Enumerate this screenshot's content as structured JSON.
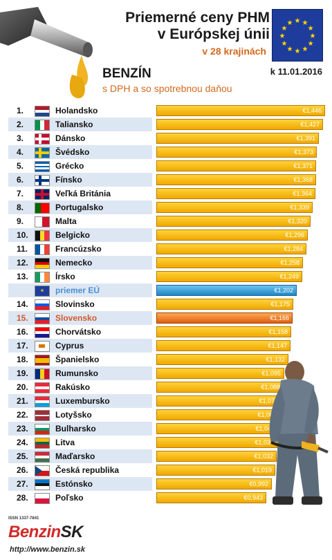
{
  "header": {
    "title_line1": "Priemerné ceny PHM",
    "title_line2": "v Európskej únii",
    "title_line3": "v 28 krajinách",
    "fuel_type": "BENZÍN",
    "subtitle": "s DPH a so spotrebnou daňou",
    "date": "k 11.01.2016"
  },
  "footer": {
    "issn": "ISSN 1337-7841",
    "logo_part1": "Benzin",
    "logo_part2": "SK",
    "url": "http://www.benzin.sk"
  },
  "colors": {
    "bar_default": "#f1a800",
    "bar_eu": "#1f86c5",
    "bar_slovakia": "#dd5e0f",
    "highlight_slovakia": "#d4572a",
    "highlight_eu": "#4a8fd4"
  },
  "chart_data": {
    "type": "bar",
    "orientation": "horizontal",
    "title": "Priemerné ceny PHM v Európskej únii",
    "xlim": [
      0,
      1.446
    ],
    "rows": [
      {
        "rank": "1.",
        "country": "Holandsko",
        "value": 1.446,
        "label": "€1,446",
        "flag": "nl"
      },
      {
        "rank": "2.",
        "country": "Taliansko",
        "value": 1.427,
        "label": "€1,427",
        "flag": "it"
      },
      {
        "rank": "3.",
        "country": "Dánsko",
        "value": 1.391,
        "label": "€1,391",
        "flag": "dk"
      },
      {
        "rank": "4.",
        "country": "Švédsko",
        "value": 1.373,
        "label": "€1,373",
        "flag": "se"
      },
      {
        "rank": "5.",
        "country": "Grécko",
        "value": 1.371,
        "label": "€1,371",
        "flag": "gr"
      },
      {
        "rank": "6.",
        "country": "Fínsko",
        "value": 1.368,
        "label": "€1,368",
        "flag": "fi"
      },
      {
        "rank": "7.",
        "country": "Veľká Británia",
        "value": 1.364,
        "label": "€1,364",
        "flag": "gb"
      },
      {
        "rank": "8.",
        "country": "Portugalsko",
        "value": 1.339,
        "label": "€1,339",
        "flag": "pt"
      },
      {
        "rank": "9.",
        "country": "Malta",
        "value": 1.32,
        "label": "€1,320",
        "flag": "mt"
      },
      {
        "rank": "10.",
        "country": "Belgicko",
        "value": 1.296,
        "label": "€1,296",
        "flag": "be"
      },
      {
        "rank": "11.",
        "country": "Francúzsko",
        "value": 1.284,
        "label": "€1,284",
        "flag": "fr"
      },
      {
        "rank": "12.",
        "country": "Nemecko",
        "value": 1.258,
        "label": "€1,258",
        "flag": "de"
      },
      {
        "rank": "13.",
        "country": "Írsko",
        "value": 1.249,
        "label": "€1,249",
        "flag": "ie"
      },
      {
        "rank": "",
        "country": "priemer EÚ",
        "value": 1.202,
        "label": "€1,202",
        "flag": "eu",
        "kind": "eu"
      },
      {
        "rank": "14.",
        "country": "Slovinsko",
        "value": 1.175,
        "label": "€1,175",
        "flag": "si"
      },
      {
        "rank": "15.",
        "country": "Slovensko",
        "value": 1.166,
        "label": "€1,166",
        "flag": "sk",
        "kind": "sk"
      },
      {
        "rank": "16.",
        "country": "Chorvátsko",
        "value": 1.158,
        "label": "€1,158",
        "flag": "hr"
      },
      {
        "rank": "17.",
        "country": "Cyprus",
        "value": 1.147,
        "label": "€1,147",
        "flag": "cy"
      },
      {
        "rank": "18.",
        "country": "Španielsko",
        "value": 1.132,
        "label": "€1,132",
        "flag": "es"
      },
      {
        "rank": "19.",
        "country": "Rumunsko",
        "value": 1.095,
        "label": "€1,095",
        "flag": "ro"
      },
      {
        "rank": "20.",
        "country": "Rakúsko",
        "value": 1.088,
        "label": "€1,088",
        "flag": "at"
      },
      {
        "rank": "21.",
        "country": "Luxembursko",
        "value": 1.07,
        "label": "€1,070",
        "flag": "lu"
      },
      {
        "rank": "22.",
        "country": "Lotyšsko",
        "value": 1.063,
        "label": "€1,063",
        "flag": "lv"
      },
      {
        "rank": "23.",
        "country": "Bulharsko",
        "value": 1.043,
        "label": "€1,043",
        "flag": "bg"
      },
      {
        "rank": "24.",
        "country": "Litva",
        "value": 1.037,
        "label": "€1,037",
        "flag": "lt"
      },
      {
        "rank": "25.",
        "country": "Maďarsko",
        "value": 1.032,
        "label": "€1,032",
        "flag": "hu"
      },
      {
        "rank": "26.",
        "country": "Česká republika",
        "value": 1.019,
        "label": "€1,019",
        "flag": "cz"
      },
      {
        "rank": "27.",
        "country": "Estónsko",
        "value": 0.992,
        "label": "€0,992",
        "flag": "ee"
      },
      {
        "rank": "28.",
        "country": "Poľsko",
        "value": 0.943,
        "label": "€0,943",
        "flag": "pl"
      }
    ]
  }
}
